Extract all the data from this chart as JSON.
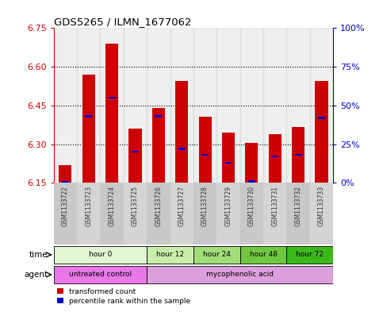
{
  "title": "GDS5265 / ILMN_1677062",
  "samples": [
    "GSM1133722",
    "GSM1133723",
    "GSM1133724",
    "GSM1133725",
    "GSM1133726",
    "GSM1133727",
    "GSM1133728",
    "GSM1133729",
    "GSM1133730",
    "GSM1133731",
    "GSM1133732",
    "GSM1133733"
  ],
  "bar_bottom": 6.15,
  "bar_top": [
    6.22,
    6.57,
    6.69,
    6.36,
    6.44,
    6.545,
    6.405,
    6.345,
    6.305,
    6.34,
    6.365,
    6.545
  ],
  "percentile_values": [
    0.5,
    43,
    55,
    20,
    43,
    22,
    18,
    13,
    1,
    17,
    18,
    42
  ],
  "ylim_left": [
    6.15,
    6.75
  ],
  "ylim_right": [
    0,
    100
  ],
  "yticks_left": [
    6.15,
    6.3,
    6.45,
    6.6,
    6.75
  ],
  "yticks_right": [
    0,
    25,
    50,
    75,
    100
  ],
  "ytick_labels_right": [
    "0%",
    "25%",
    "50%",
    "75%",
    "100%"
  ],
  "bar_color": "#cc0000",
  "percentile_color": "#0000cc",
  "grid_color": "#000000",
  "background_color": "#ffffff",
  "col_bg_color": "#cccccc",
  "time_groups": [
    {
      "label": "hour 0",
      "start": 0,
      "end": 4,
      "color": "#e0f5d0"
    },
    {
      "label": "hour 12",
      "start": 4,
      "end": 6,
      "color": "#c8eda8"
    },
    {
      "label": "hour 24",
      "start": 6,
      "end": 8,
      "color": "#a0dc78"
    },
    {
      "label": "hour 48",
      "start": 8,
      "end": 10,
      "color": "#70c840"
    },
    {
      "label": "hour 72",
      "start": 10,
      "end": 12,
      "color": "#3db81a"
    }
  ],
  "agent_groups": [
    {
      "label": "untreated control",
      "start": 0,
      "end": 4,
      "color": "#e878e8"
    },
    {
      "label": "mycophenolic acid",
      "start": 4,
      "end": 12,
      "color": "#dca0dc"
    }
  ],
  "left_axis_color": "#cc0000",
  "right_axis_color": "#0000cc",
  "bar_width": 0.55
}
